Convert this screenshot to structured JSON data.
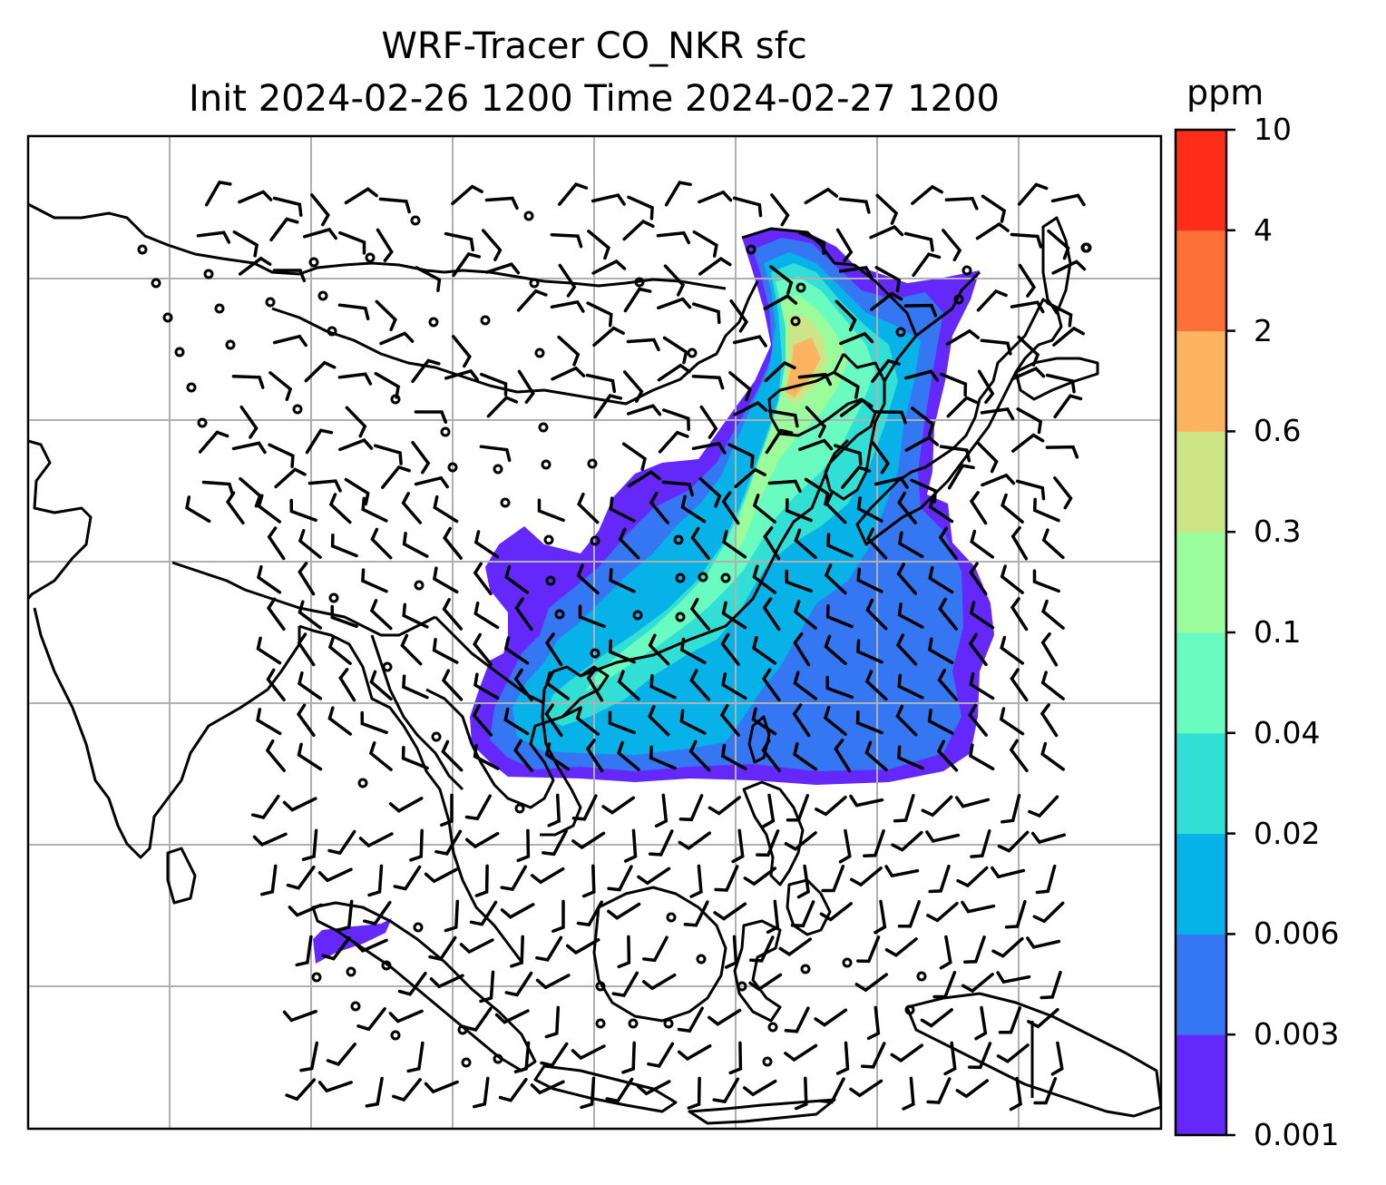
{
  "title": {
    "line1": "WRF-Tracer CO_NKR sfc",
    "line2": "Init 2024-02-26 1200 Time 2024-02-27 1200"
  },
  "colorbar": {
    "unit": "ppm",
    "levels": [
      "0.001",
      "0.003",
      "0.006",
      "0.02",
      "0.04",
      "0.1",
      "0.3",
      "0.6",
      "2",
      "4",
      "10"
    ],
    "colors": [
      "#6429fa",
      "#3577f2",
      "#06b2e8",
      "#32dfd5",
      "#69fbbf",
      "#9afc9b",
      "#cde587",
      "#fdb460",
      "#ff7038",
      "#ff2d19"
    ]
  },
  "map": {
    "gridline_color": "#b0b0b0",
    "coastline_color": "#000000",
    "features": [
      "coastlines",
      "lat-lon gridlines",
      "wind barbs",
      "calm-wind circles",
      "CO tracer filled contours"
    ]
  }
}
